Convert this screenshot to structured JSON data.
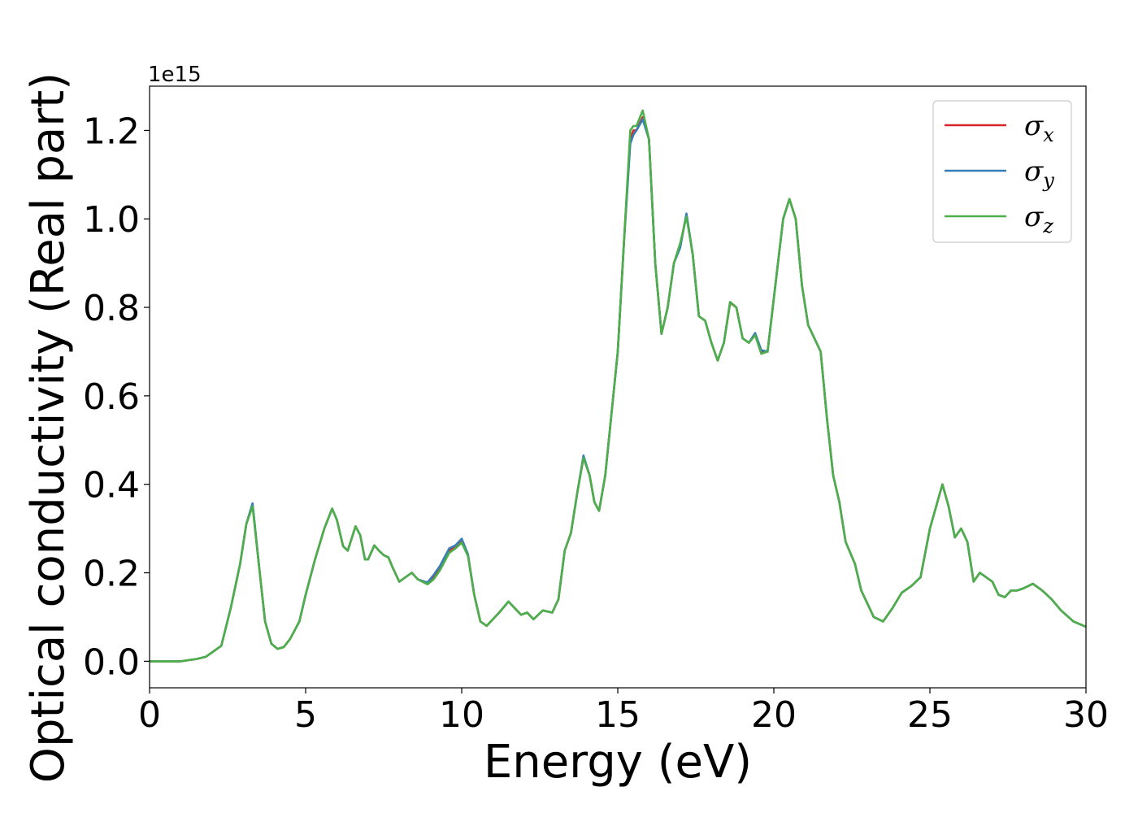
{
  "chart_data": {
    "type": "line",
    "title": "",
    "xlabel": "Energy (eV)",
    "ylabel": "Optical conductivity (Real part)",
    "y_offset_label": "1e15",
    "xlim": [
      0,
      30
    ],
    "ylim": [
      -0.06,
      1.3
    ],
    "xticks": [
      0,
      5,
      10,
      15,
      20,
      25,
      30
    ],
    "yticks": [
      0.0,
      0.2,
      0.4,
      0.6,
      0.8,
      1.0,
      1.2
    ],
    "xtick_labels": [
      "0",
      "5",
      "10",
      "15",
      "20",
      "25",
      "30"
    ],
    "ytick_labels": [
      "0.0",
      "0.2",
      "0.4",
      "0.6",
      "0.8",
      "1.0",
      "1.2"
    ],
    "grid": false,
    "legend_position": "top-right",
    "series": [
      {
        "name": "σx",
        "symbol": "σ",
        "subscript": "x",
        "color": "#d62728",
        "x": [
          0,
          1,
          1.5,
          1.8,
          2.0,
          2.3,
          2.6,
          2.9,
          3.1,
          3.3,
          3.5,
          3.7,
          3.9,
          4.1,
          4.3,
          4.5,
          4.8,
          5.0,
          5.3,
          5.6,
          5.85,
          6.0,
          6.2,
          6.35,
          6.6,
          6.75,
          6.9,
          7.0,
          7.2,
          7.35,
          7.5,
          7.65,
          7.8,
          8.0,
          8.4,
          8.6,
          8.9,
          9.1,
          9.3,
          9.6,
          9.8,
          10.0,
          10.2,
          10.4,
          10.6,
          10.8,
          11.2,
          11.5,
          11.7,
          11.9,
          12.1,
          12.3,
          12.6,
          12.9,
          13.1,
          13.3,
          13.5,
          13.7,
          13.9,
          14.1,
          14.25,
          14.4,
          14.6,
          14.8,
          15.0,
          15.2,
          15.4,
          15.5,
          15.6,
          15.8,
          16.0,
          16.2,
          16.4,
          16.6,
          16.8,
          17.0,
          17.2,
          17.4,
          17.6,
          17.8,
          18.0,
          18.2,
          18.4,
          18.6,
          18.8,
          19.0,
          19.2,
          19.4,
          19.6,
          19.8,
          20.1,
          20.3,
          20.5,
          20.7,
          20.9,
          21.1,
          21.3,
          21.5,
          21.7,
          21.9,
          22.1,
          22.3,
          22.6,
          22.8,
          23.0,
          23.2,
          23.5,
          23.8,
          24.1,
          24.4,
          24.7,
          25.0,
          25.2,
          25.4,
          25.6,
          25.8,
          26.0,
          26.2,
          26.4,
          26.6,
          26.8,
          27.0,
          27.2,
          27.4,
          27.6,
          27.8,
          28.0,
          28.3,
          28.6,
          28.9,
          29.2,
          29.6,
          30.0
        ],
        "values": [
          0.0,
          0.0,
          0.005,
          0.01,
          0.02,
          0.035,
          0.12,
          0.22,
          0.31,
          0.355,
          0.22,
          0.09,
          0.04,
          0.028,
          0.032,
          0.05,
          0.09,
          0.15,
          0.23,
          0.3,
          0.345,
          0.32,
          0.26,
          0.25,
          0.305,
          0.285,
          0.23,
          0.23,
          0.262,
          0.25,
          0.24,
          0.235,
          0.21,
          0.18,
          0.2,
          0.185,
          0.176,
          0.19,
          0.21,
          0.25,
          0.26,
          0.275,
          0.24,
          0.15,
          0.09,
          0.08,
          0.11,
          0.135,
          0.12,
          0.105,
          0.11,
          0.095,
          0.115,
          0.11,
          0.14,
          0.25,
          0.29,
          0.38,
          0.46,
          0.42,
          0.36,
          0.34,
          0.42,
          0.56,
          0.7,
          0.95,
          1.18,
          1.2,
          1.2,
          1.23,
          1.18,
          0.9,
          0.74,
          0.8,
          0.9,
          0.94,
          1.01,
          0.92,
          0.78,
          0.77,
          0.72,
          0.68,
          0.72,
          0.81,
          0.8,
          0.73,
          0.72,
          0.74,
          0.7,
          0.7,
          0.88,
          1.0,
          1.045,
          1.0,
          0.85,
          0.76,
          0.73,
          0.7,
          0.55,
          0.42,
          0.36,
          0.27,
          0.22,
          0.16,
          0.13,
          0.1,
          0.09,
          0.12,
          0.155,
          0.17,
          0.19,
          0.3,
          0.35,
          0.4,
          0.35,
          0.28,
          0.3,
          0.27,
          0.18,
          0.2,
          0.19,
          0.18,
          0.15,
          0.145,
          0.16,
          0.16,
          0.165,
          0.175,
          0.16,
          0.14,
          0.115,
          0.09,
          0.078
        ]
      },
      {
        "name": "σy",
        "symbol": "σ",
        "subscript": "y",
        "color": "#377eb8",
        "x": [
          0,
          1,
          1.5,
          1.8,
          2.0,
          2.3,
          2.6,
          2.9,
          3.1,
          3.3,
          3.5,
          3.7,
          3.9,
          4.1,
          4.3,
          4.5,
          4.8,
          5.0,
          5.3,
          5.6,
          5.85,
          6.0,
          6.2,
          6.35,
          6.6,
          6.75,
          6.9,
          7.0,
          7.2,
          7.35,
          7.5,
          7.65,
          7.8,
          8.0,
          8.4,
          8.6,
          8.9,
          9.1,
          9.3,
          9.6,
          9.8,
          10.0,
          10.2,
          10.4,
          10.6,
          10.8,
          11.2,
          11.5,
          11.7,
          11.9,
          12.1,
          12.3,
          12.6,
          12.9,
          13.1,
          13.3,
          13.5,
          13.7,
          13.9,
          14.1,
          14.25,
          14.4,
          14.6,
          14.8,
          15.0,
          15.2,
          15.4,
          15.5,
          15.6,
          15.8,
          16.0,
          16.2,
          16.4,
          16.6,
          16.8,
          17.0,
          17.2,
          17.4,
          17.6,
          17.8,
          18.0,
          18.2,
          18.4,
          18.6,
          18.8,
          19.0,
          19.2,
          19.4,
          19.6,
          19.8,
          20.1,
          20.3,
          20.5,
          20.7,
          20.9,
          21.1,
          21.3,
          21.5,
          21.7,
          21.9,
          22.1,
          22.3,
          22.6,
          22.8,
          23.0,
          23.2,
          23.5,
          23.8,
          24.1,
          24.4,
          24.7,
          25.0,
          25.2,
          25.4,
          25.6,
          25.8,
          26.0,
          26.2,
          26.4,
          26.6,
          26.8,
          27.0,
          27.2,
          27.4,
          27.6,
          27.8,
          28.0,
          28.3,
          28.6,
          28.9,
          29.2,
          29.6,
          30.0
        ],
        "values": [
          0.0,
          0.0,
          0.005,
          0.01,
          0.02,
          0.035,
          0.12,
          0.22,
          0.31,
          0.357,
          0.22,
          0.09,
          0.04,
          0.028,
          0.032,
          0.05,
          0.09,
          0.15,
          0.23,
          0.3,
          0.345,
          0.32,
          0.26,
          0.25,
          0.305,
          0.285,
          0.23,
          0.23,
          0.262,
          0.25,
          0.24,
          0.235,
          0.21,
          0.18,
          0.2,
          0.185,
          0.178,
          0.195,
          0.215,
          0.255,
          0.262,
          0.277,
          0.242,
          0.15,
          0.09,
          0.08,
          0.11,
          0.135,
          0.12,
          0.105,
          0.11,
          0.095,
          0.115,
          0.11,
          0.14,
          0.25,
          0.29,
          0.38,
          0.465,
          0.42,
          0.36,
          0.34,
          0.42,
          0.56,
          0.7,
          0.95,
          1.17,
          1.19,
          1.2,
          1.225,
          1.18,
          0.9,
          0.74,
          0.8,
          0.9,
          0.935,
          1.012,
          0.92,
          0.78,
          0.77,
          0.72,
          0.68,
          0.72,
          0.812,
          0.8,
          0.73,
          0.72,
          0.742,
          0.703,
          0.7,
          0.88,
          1.0,
          1.045,
          1.0,
          0.85,
          0.76,
          0.73,
          0.7,
          0.55,
          0.42,
          0.36,
          0.27,
          0.22,
          0.16,
          0.13,
          0.1,
          0.09,
          0.12,
          0.155,
          0.17,
          0.19,
          0.3,
          0.35,
          0.4,
          0.35,
          0.28,
          0.3,
          0.27,
          0.18,
          0.2,
          0.19,
          0.18,
          0.15,
          0.145,
          0.16,
          0.16,
          0.165,
          0.175,
          0.16,
          0.14,
          0.115,
          0.09,
          0.078
        ]
      },
      {
        "name": "σz",
        "symbol": "σ",
        "subscript": "z",
        "color": "#4daf4a",
        "x": [
          0,
          1,
          1.5,
          1.8,
          2.0,
          2.3,
          2.6,
          2.9,
          3.1,
          3.3,
          3.5,
          3.7,
          3.9,
          4.1,
          4.3,
          4.5,
          4.8,
          5.0,
          5.3,
          5.6,
          5.85,
          6.0,
          6.2,
          6.35,
          6.6,
          6.75,
          6.9,
          7.0,
          7.2,
          7.35,
          7.5,
          7.65,
          7.8,
          8.0,
          8.4,
          8.6,
          8.9,
          9.1,
          9.3,
          9.6,
          9.8,
          10.0,
          10.2,
          10.4,
          10.6,
          10.8,
          11.2,
          11.5,
          11.7,
          11.9,
          12.1,
          12.3,
          12.6,
          12.9,
          13.1,
          13.3,
          13.5,
          13.7,
          13.9,
          14.1,
          14.25,
          14.4,
          14.6,
          14.8,
          15.0,
          15.2,
          15.4,
          15.5,
          15.6,
          15.8,
          16.0,
          16.2,
          16.4,
          16.6,
          16.8,
          17.0,
          17.2,
          17.4,
          17.6,
          17.8,
          18.0,
          18.2,
          18.4,
          18.6,
          18.8,
          19.0,
          19.2,
          19.4,
          19.6,
          19.8,
          20.1,
          20.3,
          20.5,
          20.7,
          20.9,
          21.1,
          21.3,
          21.5,
          21.7,
          21.9,
          22.1,
          22.3,
          22.6,
          22.8,
          23.0,
          23.2,
          23.5,
          23.8,
          24.1,
          24.4,
          24.7,
          25.0,
          25.2,
          25.4,
          25.6,
          25.8,
          26.0,
          26.2,
          26.4,
          26.6,
          26.8,
          27.0,
          27.2,
          27.4,
          27.6,
          27.8,
          28.0,
          28.3,
          28.6,
          28.9,
          29.2,
          29.6,
          30.0
        ],
        "values": [
          0.0,
          0.0,
          0.005,
          0.01,
          0.02,
          0.035,
          0.12,
          0.22,
          0.31,
          0.35,
          0.22,
          0.09,
          0.04,
          0.028,
          0.032,
          0.05,
          0.09,
          0.15,
          0.23,
          0.3,
          0.345,
          0.32,
          0.26,
          0.25,
          0.305,
          0.285,
          0.23,
          0.23,
          0.262,
          0.25,
          0.24,
          0.235,
          0.21,
          0.18,
          0.2,
          0.185,
          0.174,
          0.185,
          0.205,
          0.245,
          0.255,
          0.268,
          0.238,
          0.15,
          0.09,
          0.08,
          0.11,
          0.135,
          0.12,
          0.105,
          0.11,
          0.095,
          0.115,
          0.11,
          0.14,
          0.25,
          0.29,
          0.38,
          0.46,
          0.42,
          0.36,
          0.34,
          0.42,
          0.56,
          0.7,
          0.95,
          1.2,
          1.21,
          1.21,
          1.245,
          1.18,
          0.9,
          0.74,
          0.8,
          0.9,
          0.945,
          1.005,
          0.92,
          0.78,
          0.77,
          0.72,
          0.68,
          0.72,
          0.812,
          0.8,
          0.73,
          0.72,
          0.737,
          0.695,
          0.7,
          0.88,
          1.0,
          1.045,
          1.0,
          0.85,
          0.76,
          0.73,
          0.7,
          0.55,
          0.42,
          0.36,
          0.27,
          0.22,
          0.16,
          0.13,
          0.1,
          0.09,
          0.12,
          0.155,
          0.17,
          0.19,
          0.3,
          0.35,
          0.4,
          0.35,
          0.28,
          0.3,
          0.27,
          0.18,
          0.2,
          0.19,
          0.18,
          0.15,
          0.145,
          0.16,
          0.16,
          0.165,
          0.175,
          0.16,
          0.14,
          0.115,
          0.09,
          0.078
        ]
      }
    ]
  }
}
